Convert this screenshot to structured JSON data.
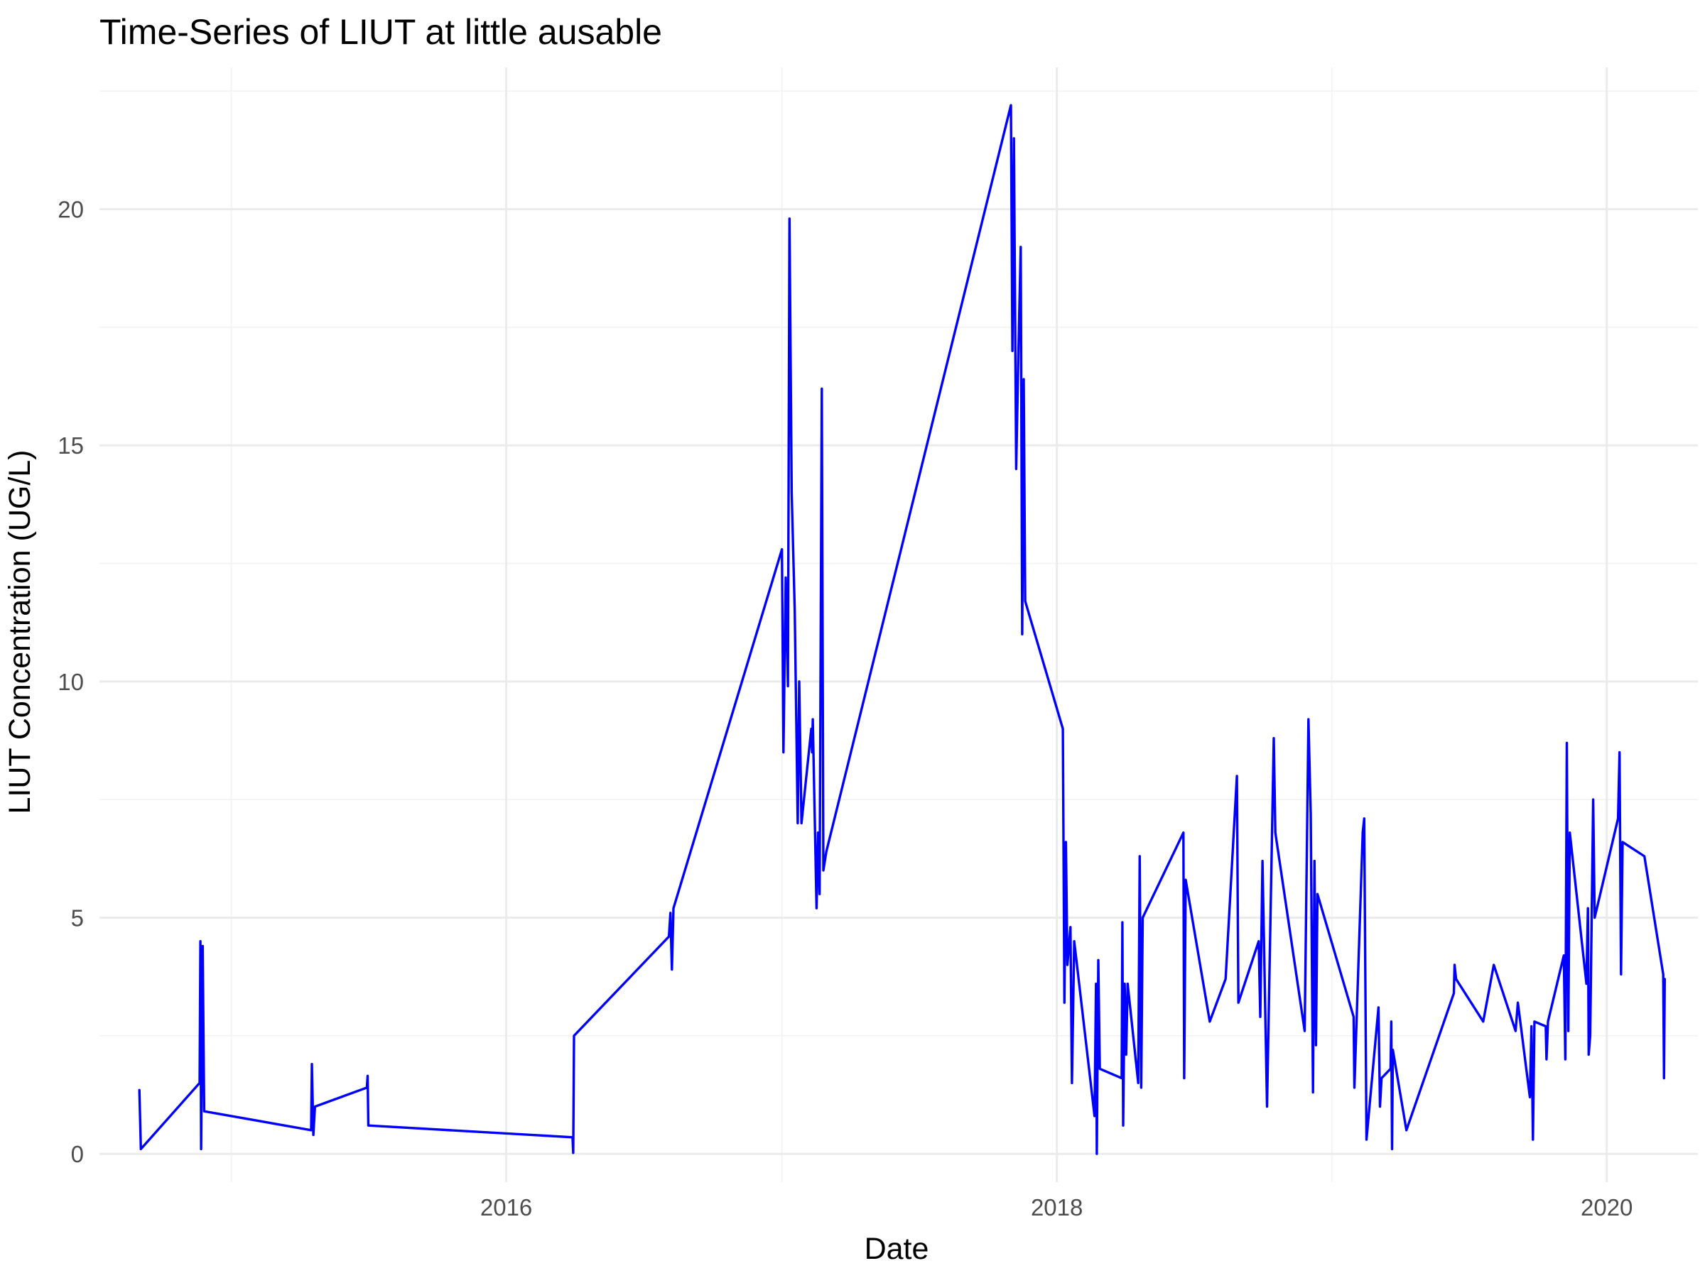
{
  "chart_data": {
    "type": "line",
    "title": "Time-Series of LIUT at little ausable",
    "xlabel": "Date",
    "ylabel": "LIUT Concentration (UG/L)",
    "x_ticks": [
      "2016",
      "2018",
      "2020"
    ],
    "y_ticks": [
      "0",
      "5",
      "10",
      "15",
      "20"
    ],
    "xlim": [
      "2014-07-10",
      "2020-05-01"
    ],
    "ylim": [
      -0.6,
      23.0
    ],
    "grid": true,
    "legend": "none",
    "series": [
      {
        "color": "#0000ff",
        "points": [
          [
            "2014-09-01",
            1.35
          ],
          [
            "2014-09-03",
            0.1
          ],
          [
            "2014-11-20",
            1.5
          ],
          [
            "2014-11-21",
            4.5
          ],
          [
            "2014-11-22",
            0.1
          ],
          [
            "2014-11-24",
            4.4
          ],
          [
            "2014-11-26",
            0.9
          ],
          [
            "2015-04-17",
            0.5
          ],
          [
            "2015-04-18",
            1.9
          ],
          [
            "2015-04-20",
            0.4
          ],
          [
            "2015-04-22",
            1.0
          ],
          [
            "2015-06-30",
            1.4
          ],
          [
            "2015-07-01",
            1.65
          ],
          [
            "2015-07-02",
            0.6
          ],
          [
            "2016-03-29",
            0.35
          ],
          [
            "2016-03-30",
            0.02
          ],
          [
            "2016-03-31",
            2.5
          ],
          [
            "2016-08-04",
            4.6
          ],
          [
            "2016-08-06",
            5.1
          ],
          [
            "2016-08-08",
            3.9
          ],
          [
            "2016-08-10",
            5.2
          ],
          [
            "2017-01-01",
            12.8
          ],
          [
            "2017-01-03",
            8.5
          ],
          [
            "2017-01-06",
            12.2
          ],
          [
            "2017-01-09",
            9.9
          ],
          [
            "2017-01-11",
            19.8
          ],
          [
            "2017-01-14",
            14.0
          ],
          [
            "2017-01-18",
            11.5
          ],
          [
            "2017-01-22",
            7.0
          ],
          [
            "2017-01-24",
            10.0
          ],
          [
            "2017-01-27",
            7.0
          ],
          [
            "2017-02-09",
            9.0
          ],
          [
            "2017-02-10",
            8.5
          ],
          [
            "2017-02-11",
            9.2
          ],
          [
            "2017-02-16",
            5.2
          ],
          [
            "2017-02-18",
            6.8
          ],
          [
            "2017-02-20",
            5.5
          ],
          [
            "2017-02-23",
            16.2
          ],
          [
            "2017-02-25",
            6.0
          ],
          [
            "2017-03-01",
            6.4
          ],
          [
            "2017-11-01",
            22.2
          ],
          [
            "2017-11-03",
            17.0
          ],
          [
            "2017-11-05",
            21.5
          ],
          [
            "2017-11-08",
            14.5
          ],
          [
            "2017-11-11",
            17.0
          ],
          [
            "2017-11-14",
            19.2
          ],
          [
            "2017-11-16",
            11.0
          ],
          [
            "2017-11-18",
            16.4
          ],
          [
            "2017-11-20",
            11.7
          ],
          [
            "2018-01-09",
            9.0
          ],
          [
            "2018-01-11",
            3.2
          ],
          [
            "2018-01-13",
            6.6
          ],
          [
            "2018-01-15",
            4.0
          ],
          [
            "2018-01-19",
            4.8
          ],
          [
            "2018-01-21",
            1.5
          ],
          [
            "2018-01-24",
            4.5
          ],
          [
            "2018-02-20",
            0.8
          ],
          [
            "2018-02-22",
            3.6
          ],
          [
            "2018-02-23",
            0.0
          ],
          [
            "2018-02-25",
            4.1
          ],
          [
            "2018-02-27",
            1.8
          ],
          [
            "2018-03-28",
            1.6
          ],
          [
            "2018-03-29",
            4.9
          ],
          [
            "2018-03-30",
            0.6
          ],
          [
            "2018-04-01",
            3.6
          ],
          [
            "2018-04-03",
            2.1
          ],
          [
            "2018-04-05",
            3.6
          ],
          [
            "2018-04-19",
            1.5
          ],
          [
            "2018-04-21",
            6.3
          ],
          [
            "2018-04-23",
            1.4
          ],
          [
            "2018-04-25",
            5.0
          ],
          [
            "2018-06-18",
            6.8
          ],
          [
            "2018-06-19",
            1.6
          ],
          [
            "2018-06-21",
            5.8
          ],
          [
            "2018-07-23",
            2.8
          ],
          [
            "2018-08-13",
            3.7
          ],
          [
            "2018-08-28",
            8.0
          ],
          [
            "2018-08-30",
            3.2
          ],
          [
            "2018-09-26",
            4.5
          ],
          [
            "2018-09-28",
            2.9
          ],
          [
            "2018-10-01",
            6.2
          ],
          [
            "2018-10-07",
            1.0
          ],
          [
            "2018-10-16",
            8.8
          ],
          [
            "2018-10-18",
            6.8
          ],
          [
            "2018-11-26",
            2.6
          ],
          [
            "2018-12-01",
            9.2
          ],
          [
            "2018-12-04",
            7.2
          ],
          [
            "2018-12-07",
            1.3
          ],
          [
            "2018-12-09",
            6.2
          ],
          [
            "2018-12-11",
            2.3
          ],
          [
            "2018-12-13",
            5.5
          ],
          [
            "2019-01-30",
            2.9
          ],
          [
            "2019-01-31",
            1.4
          ],
          [
            "2019-02-11",
            6.8
          ],
          [
            "2019-02-13",
            7.1
          ],
          [
            "2019-02-16",
            0.3
          ],
          [
            "2019-03-04",
            3.1
          ],
          [
            "2019-03-06",
            1.0
          ],
          [
            "2019-03-08",
            1.6
          ],
          [
            "2019-03-20",
            1.8
          ],
          [
            "2019-03-21",
            2.8
          ],
          [
            "2019-03-22",
            0.1
          ],
          [
            "2019-03-23",
            2.2
          ],
          [
            "2019-04-10",
            0.5
          ],
          [
            "2019-06-12",
            3.4
          ],
          [
            "2019-06-13",
            4.0
          ],
          [
            "2019-06-15",
            3.7
          ],
          [
            "2019-07-21",
            2.8
          ],
          [
            "2019-08-04",
            4.0
          ],
          [
            "2019-09-02",
            2.6
          ],
          [
            "2019-09-05",
            3.2
          ],
          [
            "2019-09-21",
            1.2
          ],
          [
            "2019-09-23",
            2.7
          ],
          [
            "2019-09-25",
            0.3
          ],
          [
            "2019-09-27",
            2.8
          ],
          [
            "2019-10-12",
            2.7
          ],
          [
            "2019-10-13",
            2.0
          ],
          [
            "2019-10-15",
            2.8
          ],
          [
            "2019-11-05",
            4.2
          ],
          [
            "2019-11-07",
            2.0
          ],
          [
            "2019-11-09",
            8.7
          ],
          [
            "2019-11-11",
            2.6
          ],
          [
            "2019-11-13",
            6.8
          ],
          [
            "2019-12-05",
            3.6
          ],
          [
            "2019-12-07",
            5.2
          ],
          [
            "2019-12-08",
            2.1
          ],
          [
            "2019-12-10",
            2.5
          ],
          [
            "2019-12-14",
            7.5
          ],
          [
            "2019-12-16",
            5.0
          ],
          [
            "2020-01-16",
            7.1
          ],
          [
            "2020-01-18",
            8.5
          ],
          [
            "2020-01-20",
            3.8
          ],
          [
            "2020-01-22",
            6.6
          ],
          [
            "2020-02-20",
            6.3
          ],
          [
            "2020-03-16",
            3.8
          ],
          [
            "2020-03-17",
            1.6
          ],
          [
            "2020-03-18",
            3.7
          ]
        ]
      }
    ]
  }
}
